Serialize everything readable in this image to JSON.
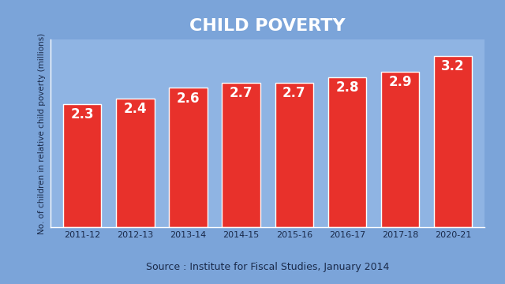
{
  "chart_data": {
    "type": "bar",
    "title": "CHILD POVERTY",
    "y_label": "No. of children in relative child poverty (millions)",
    "categories": [
      "2011-12",
      "2012-13",
      "2013-14",
      "2014-15",
      "2015-16",
      "2016-17",
      "2017-18",
      "2020-21"
    ],
    "values": [
      2.3,
      2.4,
      2.6,
      2.7,
      2.7,
      2.8,
      2.9,
      3.2
    ],
    "color": "#e8312b",
    "ylim": [
      0,
      3.5
    ],
    "data_labels": true,
    "tick_labels": "x",
    "grid": false,
    "annotations": [
      "Source : Institute for Fiscal Studies, January 2014"
    ]
  }
}
